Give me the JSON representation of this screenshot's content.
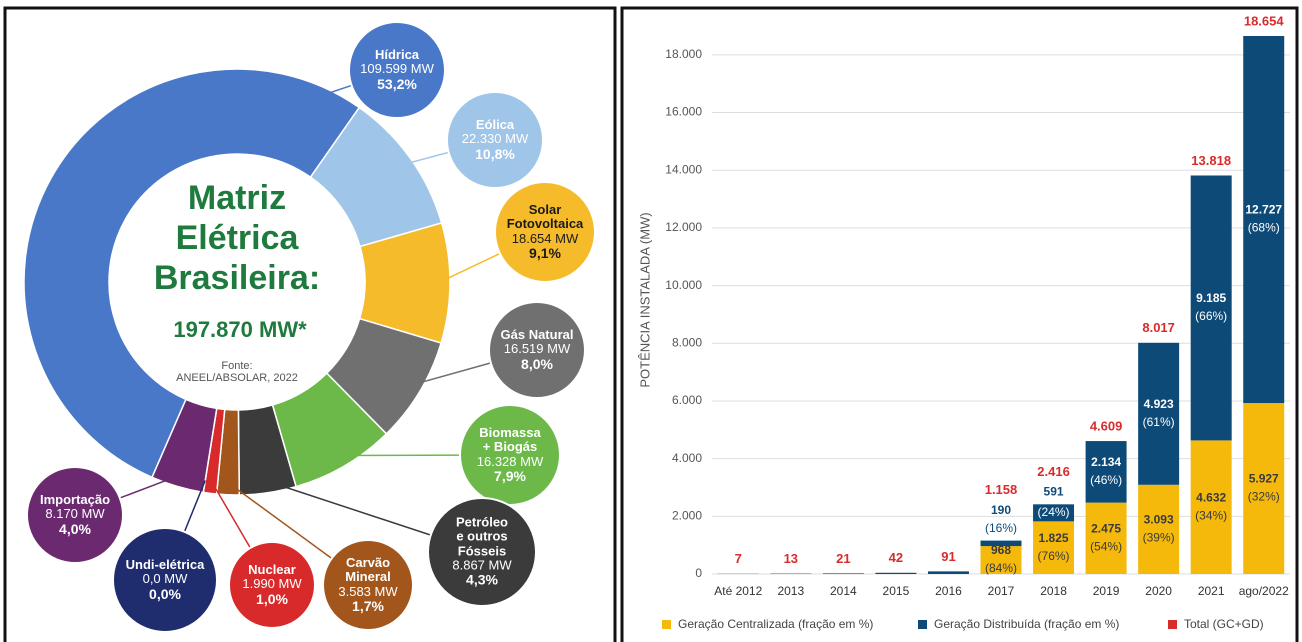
{
  "chart_data": [
    {
      "type": "pie",
      "title": "Matriz\nElétrica\nBrasileira:",
      "subtitle": "197.870 MW*",
      "source": "Fonte:\nANEEL/ABSOLAR, 2022",
      "categories": [
        "Hídrica",
        "Eólica",
        "Solar\nFotovoltaica",
        "Gás Natural",
        "Biomassa\n+ Biogás",
        "Petróleo\ne outros\nFósseis",
        "Carvão\nMineral",
        "Nuclear",
        "Undi-elétrica",
        "Importação"
      ],
      "values": [
        53.2,
        10.8,
        9.1,
        8.0,
        7.9,
        4.3,
        1.7,
        1.0,
        0.0,
        4.0
      ],
      "value_labels": [
        "53,2%",
        "10,8%",
        "9,1%",
        "8,0%",
        "7,9%",
        "4,3%",
        "1,7%",
        "1,0%",
        "0,0%",
        "4,0%"
      ],
      "capacity_labels": [
        "109.599 MW",
        "22.330 MW",
        "18.654 MW",
        "16.519 MW",
        "16.328 MW",
        "8.867 MW",
        "3.583 MW",
        "1.990 MW",
        "0,0 MW",
        "8.170 MW"
      ],
      "colors": [
        "#4a78c9",
        "#9fc5e8",
        "#f6bb2a",
        "#707070",
        "#6cb94a",
        "#3b3b3b",
        "#a3561c",
        "#d82a2a",
        "#1f2c6e",
        "#6b2a70"
      ],
      "label_colors": [
        "#ffffff",
        "#ffffff",
        "#1a1a1a",
        "#ffffff",
        "#ffffff",
        "#ffffff",
        "#ffffff",
        "#ffffff",
        "#ffffff",
        "#ffffff"
      ]
    },
    {
      "type": "bar",
      "stacked": true,
      "y_label": "POTÊNCIA INSTALADA (MW)",
      "categories": [
        "Até 2012",
        "2013",
        "2014",
        "2015",
        "2016",
        "2017",
        "2018",
        "2019",
        "2020",
        "2021",
        "ago/2022"
      ],
      "series": [
        {
          "name": "Geração Centralizada (fração em %)",
          "color": "#f5b90c",
          "values": [
            null,
            null,
            null,
            null,
            null,
            968,
            1825,
            2475,
            3093,
            4632,
            5927
          ],
          "value_labels": [
            null,
            null,
            null,
            null,
            null,
            "968",
            "1.825",
            "2.475",
            "3.093",
            "4.632",
            "5.927"
          ],
          "shares": [
            null,
            null,
            null,
            null,
            null,
            84,
            76,
            54,
            39,
            34,
            32
          ],
          "share_labels": [
            null,
            null,
            null,
            null,
            null,
            "(84%)",
            "(76%)",
            "(54%)",
            "(39%)",
            "(34%)",
            "(32%)"
          ]
        },
        {
          "name": "Geração Distribuída (fração em %)",
          "color": "#0e4a77",
          "values": [
            7,
            13,
            21,
            42,
            91,
            190,
            591,
            2134,
            4923,
            9185,
            12727
          ],
          "value_labels": [
            null,
            null,
            null,
            null,
            null,
            "190",
            "591",
            "2.134",
            "4.923",
            "9.185",
            "12.727"
          ],
          "shares": [
            null,
            null,
            null,
            null,
            null,
            16,
            24,
            46,
            61,
            66,
            68
          ],
          "share_labels": [
            null,
            null,
            null,
            null,
            null,
            "(16%)",
            "(24%)",
            "(46%)",
            "(61%)",
            "(66%)",
            "(68%)"
          ]
        }
      ],
      "total": {
        "name": "Total (GC+GD)",
        "color": "#d92b2b",
        "values": [
          7,
          13,
          21,
          42,
          91,
          1158,
          2416,
          4609,
          8017,
          13818,
          18654
        ],
        "value_labels": [
          "7",
          "13",
          "21",
          "42",
          "91",
          "1.158",
          "2.416",
          "4.609",
          "8.017",
          "13.818",
          "18.654"
        ]
      },
      "ylim": [
        0,
        19000
      ],
      "yticks": [
        0,
        {
          "value": 2000,
          "label": "2.000"
        },
        {
          "value": 4000,
          "label": "4.000"
        },
        {
          "value": 6000,
          "label": "6.000"
        },
        {
          "value": 8000,
          "label": "8.000"
        },
        {
          "value": 10000,
          "label": "10.000"
        },
        {
          "value": 12000,
          "label": "12.000"
        },
        {
          "value": 14000,
          "label": "14.000"
        },
        {
          "value": 16000,
          "label": "16.000"
        },
        {
          "value": 18000,
          "label": "18.000"
        }
      ],
      "grid": true
    }
  ]
}
